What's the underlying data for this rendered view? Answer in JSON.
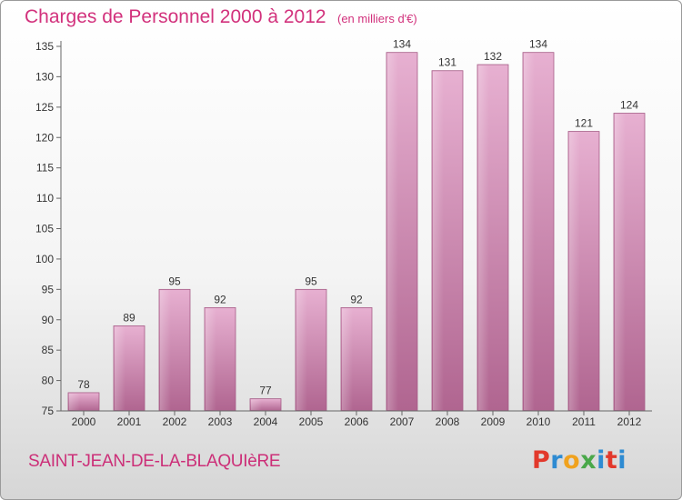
{
  "header": {
    "title": "Charges de Personnel 2000 à 2012",
    "unit": "(en milliers d'€)"
  },
  "footer": {
    "commune": "SAINT-JEAN-DE-LA-BLAQUIèRE",
    "brand": "Proxiti",
    "brand_colors": [
      "#e2382b",
      "#2e8bd2",
      "#f0a21e",
      "#4aa84a",
      "#2e8bd2",
      "#e2382b",
      "#2e8bd2"
    ]
  },
  "colors": {
    "bar": "#d48db4",
    "bar_light": "#e6aed0",
    "bar_dark": "#b96f9a",
    "text_accent": "#d2317c"
  },
  "chart_data": {
    "type": "bar",
    "title": "Charges de Personnel 2000 à 2012",
    "subtitle": "(en milliers d'€)",
    "categories": [
      "2000",
      "2001",
      "2002",
      "2003",
      "2004",
      "2005",
      "2006",
      "2007",
      "2008",
      "2009",
      "2010",
      "2011",
      "2012"
    ],
    "values": [
      78,
      89,
      95,
      92,
      77,
      95,
      92,
      134,
      131,
      132,
      134,
      121,
      124
    ],
    "xlabel": "",
    "ylabel": "",
    "ylim": [
      75,
      135
    ],
    "yticks": [
      75,
      80,
      85,
      90,
      95,
      100,
      105,
      110,
      115,
      120,
      125,
      130,
      135
    ],
    "grid": false,
    "legend": "none"
  }
}
